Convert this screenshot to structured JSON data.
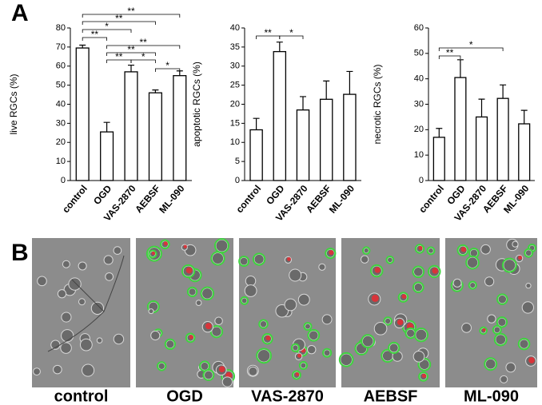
{
  "panels": [
    "A",
    "B"
  ],
  "images": [
    "control",
    "OGD",
    "VAS-2870",
    "AEBSF",
    "ML-090"
  ],
  "chart_data": [
    {
      "type": "bar",
      "y_label": "live RGCs (%)",
      "categories": [
        "control",
        "OGD",
        "VAS-2870",
        "AEBSF",
        "ML-090"
      ],
      "values": [
        69.5,
        25.5,
        57,
        46,
        55
      ],
      "errors": [
        1.5,
        5,
        3.5,
        1.5,
        2.5
      ],
      "ylim": [
        0,
        80
      ],
      "yticks": [
        0,
        10,
        20,
        30,
        40,
        50,
        60,
        70,
        80
      ],
      "color": "#ffffff",
      "significance": [
        {
          "label": "**",
          "between": [
            "control",
            "ML-090"
          ]
        },
        {
          "label": "**",
          "between": [
            "control",
            "AEBSF"
          ]
        },
        {
          "label": "*",
          "between": [
            "control",
            "VAS-2870"
          ]
        },
        {
          "label": "**",
          "between": [
            "control",
            "OGD"
          ]
        },
        {
          "label": "**",
          "between": [
            "OGD",
            "ML-090"
          ]
        },
        {
          "label": "**",
          "between": [
            "OGD",
            "AEBSF"
          ]
        },
        {
          "label": "**",
          "between": [
            "OGD",
            "VAS-2870"
          ]
        },
        {
          "label": "*",
          "between": [
            "VAS-2870",
            "AEBSF"
          ]
        },
        {
          "label": "*",
          "between": [
            "AEBSF",
            "ML-090"
          ]
        }
      ]
    },
    {
      "type": "bar",
      "y_label": "apoptotic RGCs (%)",
      "categories": [
        "control",
        "OGD",
        "VAS-2870",
        "AEBSF",
        "ML-090"
      ],
      "values": [
        13.3,
        33.8,
        18.5,
        21.3,
        22.6
      ],
      "errors": [
        3,
        2.5,
        3.5,
        4.8,
        6
      ],
      "ylim": [
        0,
        40
      ],
      "yticks": [
        0,
        5,
        10,
        15,
        20,
        25,
        30,
        35,
        40
      ],
      "color": "#ffffff",
      "significance": [
        {
          "label": "**",
          "between": [
            "control",
            "OGD"
          ]
        },
        {
          "label": "*",
          "between": [
            "OGD",
            "VAS-2870"
          ]
        }
      ]
    },
    {
      "type": "bar",
      "y_label": "necrotic RGCs (%)",
      "categories": [
        "control",
        "OGD",
        "VAS-2870",
        "AEBSF",
        "ML-090"
      ],
      "values": [
        17,
        40.5,
        25,
        32.3,
        22.3
      ],
      "errors": [
        3.5,
        7,
        7,
        5.3,
        5.3
      ],
      "ylim": [
        0,
        60
      ],
      "yticks": [
        0,
        10,
        20,
        30,
        40,
        50,
        60
      ],
      "color": "#ffffff",
      "significance": [
        {
          "label": "*",
          "between": [
            "control",
            "AEBSF"
          ]
        },
        {
          "label": "**",
          "between": [
            "control",
            "OGD"
          ]
        }
      ]
    }
  ]
}
